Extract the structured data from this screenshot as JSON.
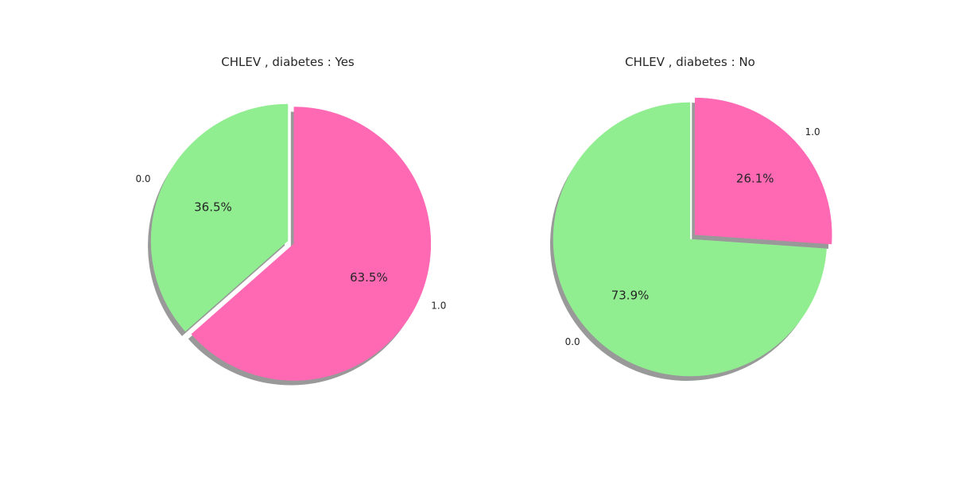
{
  "chart_data": [
    {
      "type": "pie",
      "title": "CHLEV , diabetes : Yes",
      "start_angle_deg": 90,
      "direction": "counterclockwise",
      "shadow": true,
      "slices": [
        {
          "label": "0.0",
          "value": 36.5,
          "pct_label": "36.5%",
          "color": "#90EE90"
        },
        {
          "label": "1.0",
          "value": 63.5,
          "pct_label": "63.5%",
          "color": "#FF69B4",
          "exploded": true
        }
      ]
    },
    {
      "type": "pie",
      "title": "CHLEV , diabetes : No",
      "start_angle_deg": 90,
      "direction": "counterclockwise",
      "shadow": true,
      "slices": [
        {
          "label": "0.0",
          "value": 73.9,
          "pct_label": "73.9%",
          "color": "#90EE90"
        },
        {
          "label": "1.0",
          "value": 26.1,
          "pct_label": "26.1%",
          "color": "#FF69B4",
          "exploded": true
        }
      ]
    }
  ],
  "colors": {
    "background": "#ffffff",
    "shadow": "#999999",
    "text": "#262626"
  }
}
